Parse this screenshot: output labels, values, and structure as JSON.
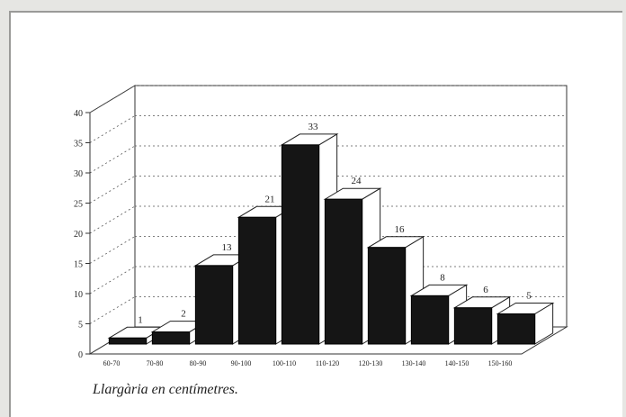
{
  "chart_data": {
    "type": "bar",
    "style": "3d",
    "categories": [
      "60-70",
      "70-80",
      "80-90",
      "90-100",
      "100-110",
      "110-120",
      "120-130",
      "130-140",
      "140-150",
      "150-160"
    ],
    "values": [
      1,
      2,
      13,
      21,
      33,
      24,
      16,
      8,
      6,
      5
    ],
    "yticks": [
      0,
      5,
      10,
      15,
      20,
      25,
      30,
      35,
      40
    ],
    "ylim": [
      0,
      40
    ],
    "grid": "dotted horizontal on back wall",
    "bar_color": "#151515",
    "xlabel": "Llargària en centímetres.",
    "ylabel": "",
    "title": ""
  }
}
